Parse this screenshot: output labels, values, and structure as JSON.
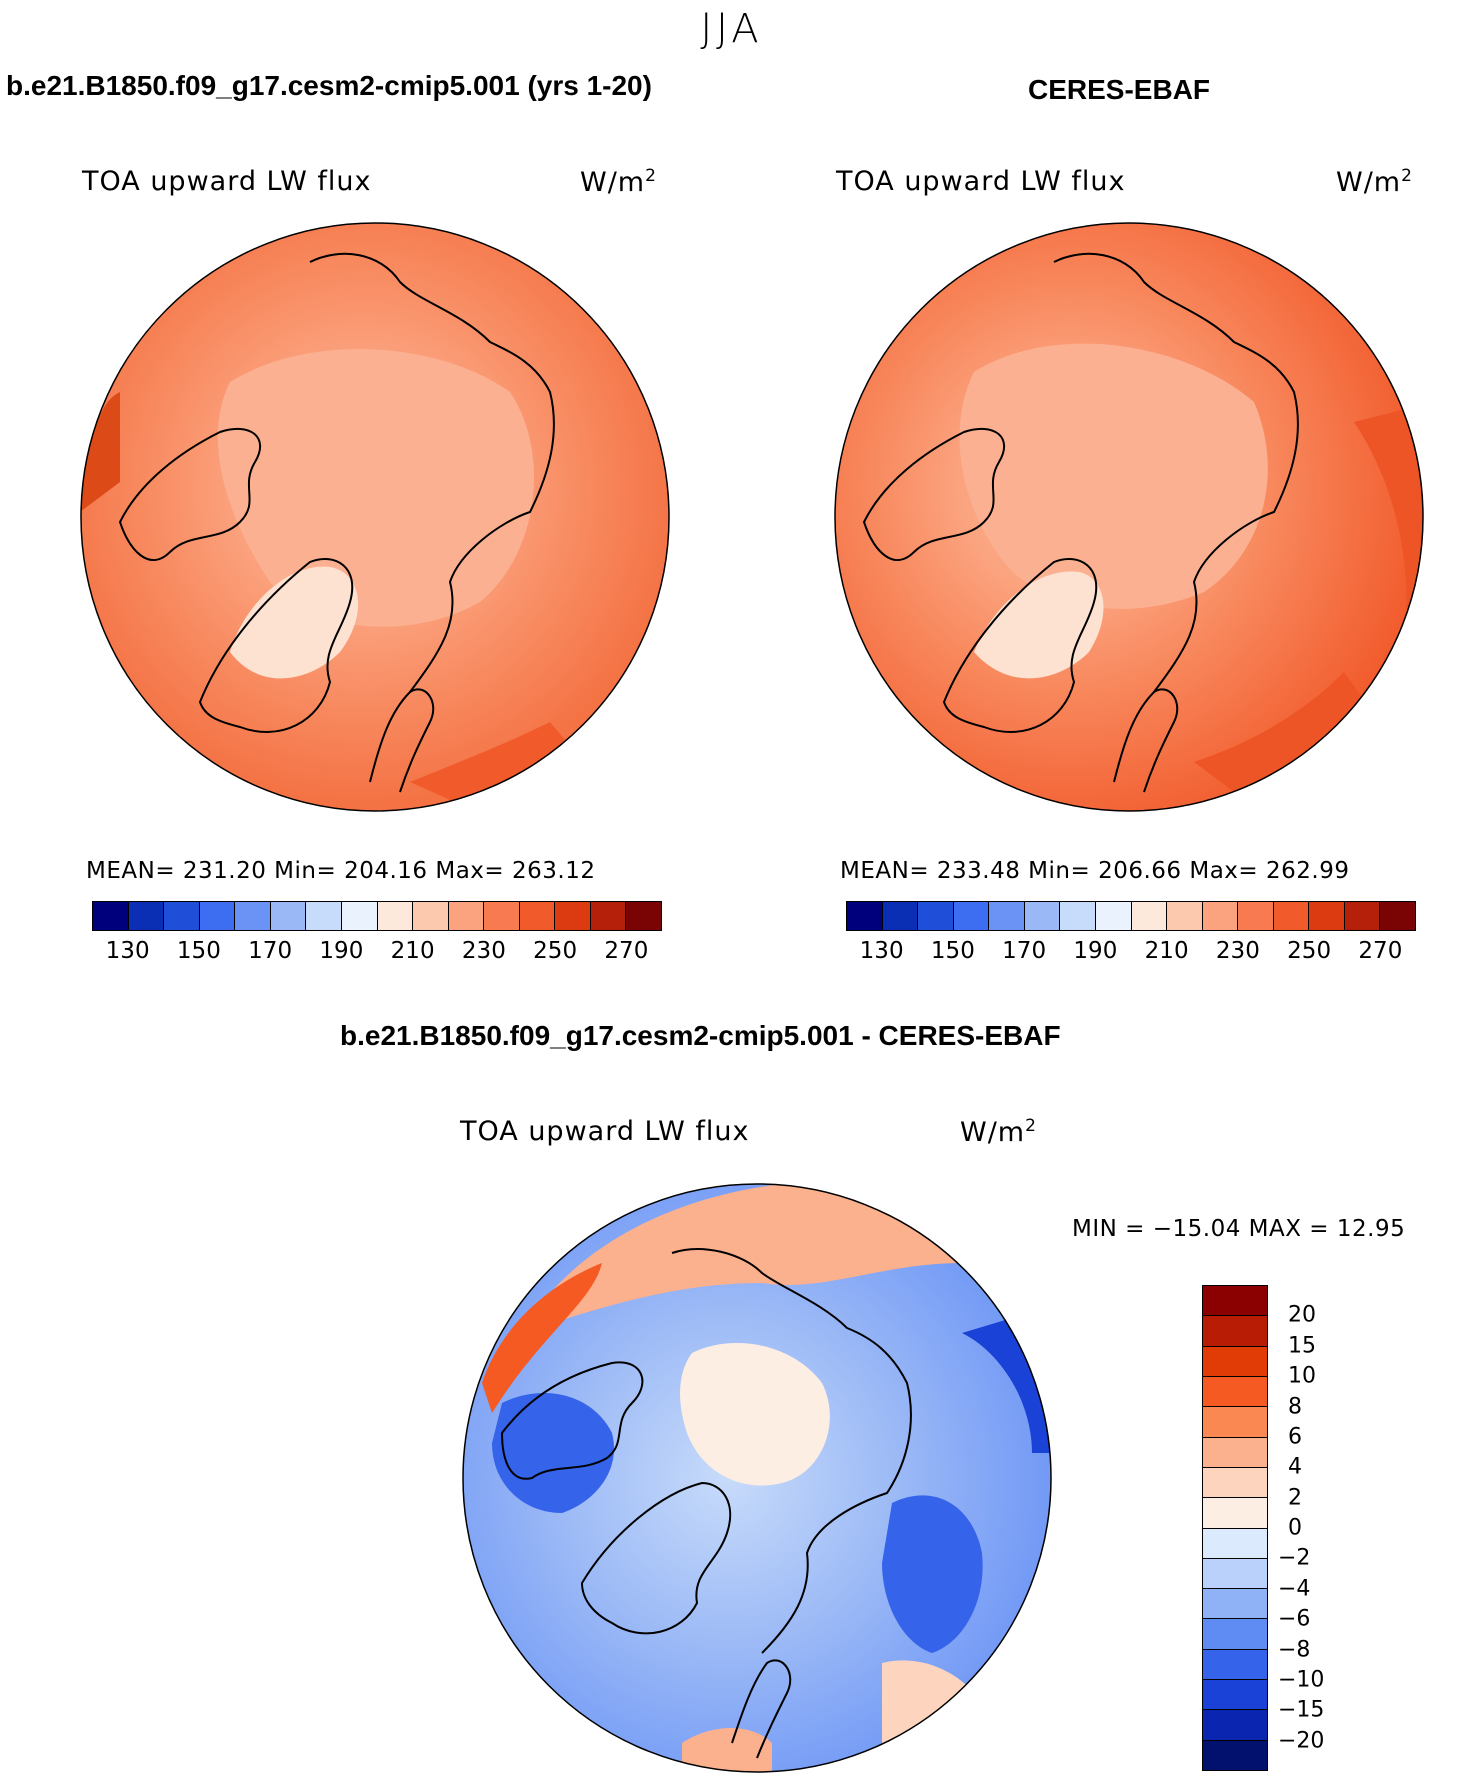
{
  "season": "JJA",
  "panels": [
    {
      "title": "b.e21.B1850.f09_g17.cesm2-cmip5.001 (yrs 1-20)",
      "variable": "TOA upward LW flux",
      "units_base": "W/m",
      "units_exp": "2",
      "stats": "MEAN= 231.20   Min= 204.16   Max= 263.12"
    },
    {
      "title": "CERES-EBAF",
      "variable": "TOA upward LW flux",
      "units_base": "W/m",
      "units_exp": "2",
      "stats": "MEAN= 233.48   Min= 206.66   Max= 262.99"
    }
  ],
  "abs_colorbar": {
    "ticks": [
      "130",
      "150",
      "170",
      "190",
      "210",
      "230",
      "250",
      "270"
    ],
    "colors": [
      "#00007d",
      "#0a2fb4",
      "#1f4fd8",
      "#3d6ef2",
      "#6a93f5",
      "#9ab8f6",
      "#c7dbfa",
      "#eaf3fd",
      "#fde9dc",
      "#fcc9ae",
      "#fba37f",
      "#f87a50",
      "#f15a2b",
      "#dc3a10",
      "#b5200a",
      "#7a0404"
    ]
  },
  "diff": {
    "title": "b.e21.B1850.f09_g17.cesm2-cmip5.001 - CERES-EBAF",
    "variable": "TOA upward LW flux",
    "units_base": "W/m",
    "units_exp": "2",
    "stats": "MIN = −15.04 MAX =   12.95",
    "colorbar_ticks": [
      "20",
      "15",
      "10",
      "8",
      "6",
      "4",
      "2",
      "0",
      "−2",
      "−4",
      "−6",
      "−8",
      "−10",
      "−15",
      "−20"
    ],
    "colorbar_colors": [
      "#8b0000",
      "#b81c04",
      "#e23c06",
      "#f45a22",
      "#f98852",
      "#fbb08e",
      "#fdd4be",
      "#fdeee4",
      "#dceafd",
      "#b9d1fb",
      "#8fb2f7",
      "#5f8cf2",
      "#3563ea",
      "#1a42d6",
      "#0a26b0",
      "#02106e"
    ]
  }
}
